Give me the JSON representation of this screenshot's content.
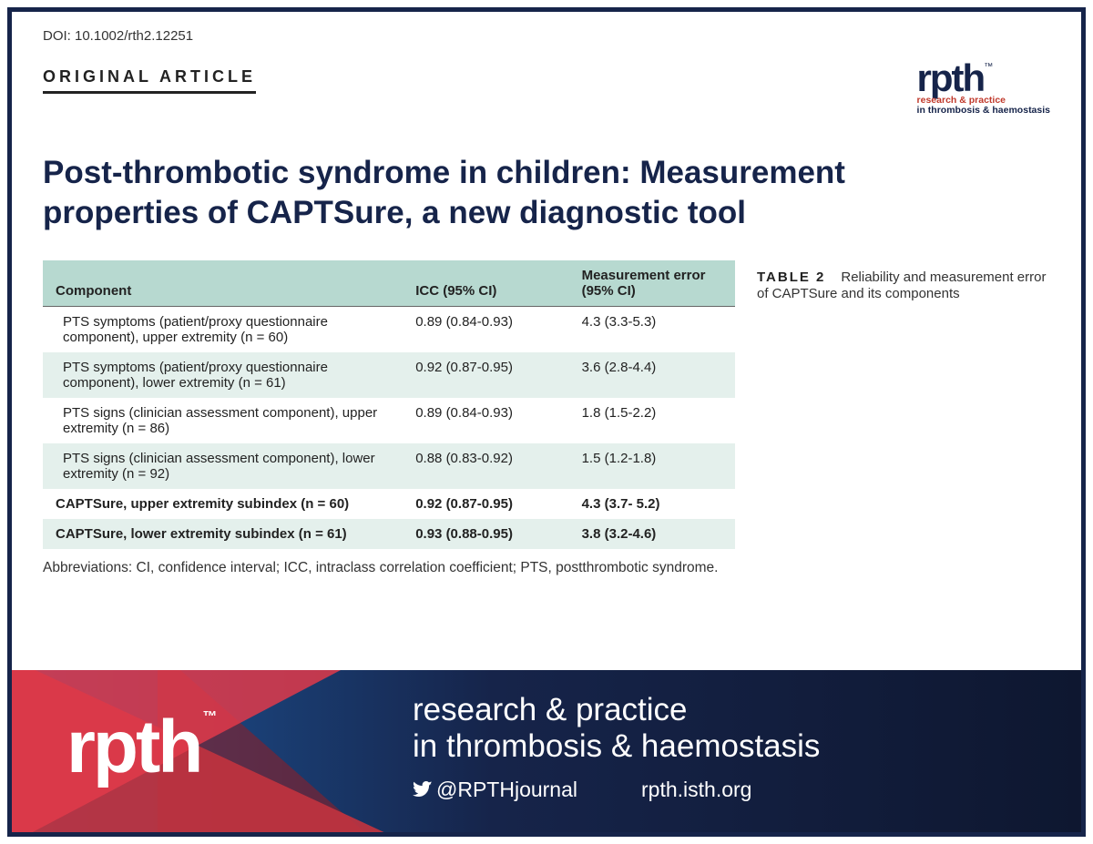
{
  "doi": "DOI: 10.1002/rth2.12251",
  "article_type": "ORIGINAL ARTICLE",
  "top_logo": {
    "main": "rpth",
    "tm": "™",
    "sub1": "research & practice",
    "sub2": "in thrombosis & haemostasis"
  },
  "title": "Post-thrombotic syndrome in children: Measurement properties of CAPTSure, a new diagnostic tool",
  "table": {
    "headers": {
      "col1": "Component",
      "col2": "ICC (95% CI)",
      "col3": "Measurement error (95% CI)"
    },
    "rows": [
      {
        "c1": "PTS symptoms (patient/proxy questionnaire component), upper extremity (n = 60)",
        "c2": "0.89 (0.84-0.93)",
        "c3": "4.3 (3.3-5.3)",
        "shade": false,
        "bold": false
      },
      {
        "c1": "PTS symptoms (patient/proxy questionnaire component), lower extremity (n = 61)",
        "c2": "0.92 (0.87-0.95)",
        "c3": "3.6 (2.8-4.4)",
        "shade": true,
        "bold": false
      },
      {
        "c1": "PTS signs (clinician assessment component), upper extremity (n = 86)",
        "c2": "0.89 (0.84-0.93)",
        "c3": "1.8 (1.5-2.2)",
        "shade": false,
        "bold": false
      },
      {
        "c1": "PTS signs (clinician assessment component), lower extremity (n = 92)",
        "c2": "0.88 (0.83-0.92)",
        "c3": "1.5 (1.2-1.8)",
        "shade": true,
        "bold": false
      },
      {
        "c1": "CAPTSure, upper extremity subindex (n = 60)",
        "c2": "0.92 (0.87-0.95)",
        "c3": "4.3 (3.7- 5.2)",
        "shade": false,
        "bold": true
      },
      {
        "c1": "CAPTSure, lower extremity subindex (n = 61)",
        "c2": "0.93 (0.88-0.95)",
        "c3": "3.8 (3.2-4.6)",
        "shade": true,
        "bold": true
      }
    ],
    "abbrev": "Abbreviations: CI, confidence interval; ICC, intraclass correlation coefficient; PTS, postthrombotic syndrome.",
    "header_bg": "#b7d9d0",
    "shade_bg": "#e4f0ec"
  },
  "caption": {
    "num": "TABLE 2",
    "text": "Reliability and measurement error of CAPTSure and its components"
  },
  "banner": {
    "logo": "rpth",
    "tm": "™",
    "line1": "research & practice",
    "line2": "in thrombosis & haemostasis",
    "twitter": "@RPTHjournal",
    "url": "rpth.isth.org",
    "colors": {
      "blue_grad_start": "#1e5aa0",
      "blue_grad_mid": "#16244a",
      "blue_grad_end": "#0e1730",
      "red1": "#c0333f",
      "red2": "#e03a4a",
      "red3": "#8a1f28"
    }
  },
  "colors": {
    "frame_border": "#16244a",
    "title_color": "#16244a",
    "text_color": "#222222"
  }
}
